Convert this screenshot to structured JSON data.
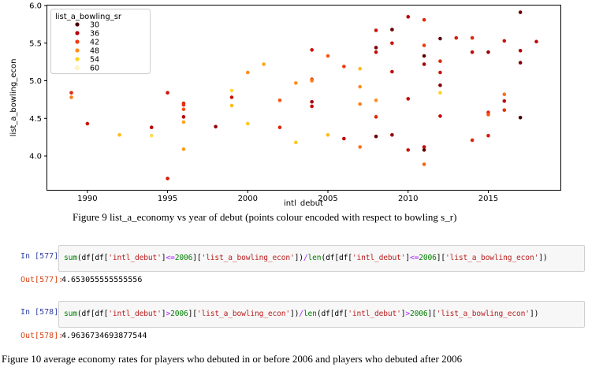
{
  "chart_data": {
    "type": "scatter",
    "xlabel": "intl_debut",
    "ylabel": "list_a_bowling_econ",
    "xlim": [
      1987.5,
      2019.5
    ],
    "ylim": [
      3.55,
      6.0
    ],
    "xticks": [
      "1990",
      "1995",
      "2000",
      "2005",
      "2010",
      "2015"
    ],
    "xtick_values": [
      1990,
      1995,
      2000,
      2005,
      2010,
      2015
    ],
    "yticks": [
      "4.0",
      "4.5",
      "5.0",
      "5.5",
      "6.0"
    ],
    "ytick_values": [
      4.0,
      4.5,
      5.0,
      5.5,
      6.0
    ],
    "grid": false,
    "legend": {
      "title": "list_a_bowling_sr",
      "placement": "top-left",
      "items": [
        {
          "label": "30",
          "color": "#4a0000"
        },
        {
          "label": "36",
          "color": "#b8000a"
        },
        {
          "label": "42",
          "color": "#ef3b0f"
        },
        {
          "label": "48",
          "color": "#fd8d1c"
        },
        {
          "label": "54",
          "color": "#ffd21e"
        },
        {
          "label": "60",
          "color": "#fff7c2"
        }
      ]
    },
    "colormap": [
      "#4a0000",
      "#b8000a",
      "#ef3b0f",
      "#fd8d1c",
      "#ffd21e",
      "#fff7c2"
    ],
    "color_value_range": [
      30,
      60
    ],
    "points": [
      {
        "x": 1989,
        "y": 4.84,
        "c": 40
      },
      {
        "x": 1989,
        "y": 4.78,
        "c": 47
      },
      {
        "x": 1990,
        "y": 4.43,
        "c": 38
      },
      {
        "x": 1992,
        "y": 4.28,
        "c": 52
      },
      {
        "x": 1994,
        "y": 4.38,
        "c": 36
      },
      {
        "x": 1994,
        "y": 4.27,
        "c": 56
      },
      {
        "x": 1995,
        "y": 4.84,
        "c": 38
      },
      {
        "x": 1995,
        "y": 3.7,
        "c": 39
      },
      {
        "x": 1996,
        "y": 4.7,
        "c": 40
      },
      {
        "x": 1996,
        "y": 4.68,
        "c": 41
      },
      {
        "x": 1996,
        "y": 4.62,
        "c": 44
      },
      {
        "x": 1996,
        "y": 4.52,
        "c": 36
      },
      {
        "x": 1996,
        "y": 4.45,
        "c": 50
      },
      {
        "x": 1996,
        "y": 4.09,
        "c": 49
      },
      {
        "x": 1998,
        "y": 4.39,
        "c": 34
      },
      {
        "x": 1999,
        "y": 4.87,
        "c": 55
      },
      {
        "x": 1999,
        "y": 4.78,
        "c": 38
      },
      {
        "x": 1999,
        "y": 4.67,
        "c": 52
      },
      {
        "x": 2000,
        "y": 5.11,
        "c": 48
      },
      {
        "x": 2000,
        "y": 4.43,
        "c": 53
      },
      {
        "x": 2001,
        "y": 5.22,
        "c": 50
      },
      {
        "x": 2002,
        "y": 4.74,
        "c": 44
      },
      {
        "x": 2002,
        "y": 4.38,
        "c": 40
      },
      {
        "x": 2003,
        "y": 4.97,
        "c": 48
      },
      {
        "x": 2003,
        "y": 4.18,
        "c": 53
      },
      {
        "x": 2004,
        "y": 5.41,
        "c": 38
      },
      {
        "x": 2004,
        "y": 5.02,
        "c": 43
      },
      {
        "x": 2004,
        "y": 5.0,
        "c": 47
      },
      {
        "x": 2004,
        "y": 4.72,
        "c": 35
      },
      {
        "x": 2004,
        "y": 4.66,
        "c": 37
      },
      {
        "x": 2005,
        "y": 5.33,
        "c": 44
      },
      {
        "x": 2005,
        "y": 4.28,
        "c": 52
      },
      {
        "x": 2006,
        "y": 5.19,
        "c": 42
      },
      {
        "x": 2006,
        "y": 4.23,
        "c": 36
      },
      {
        "x": 2007,
        "y": 5.16,
        "c": 52
      },
      {
        "x": 2007,
        "y": 4.92,
        "c": 48
      },
      {
        "x": 2007,
        "y": 4.69,
        "c": 47
      },
      {
        "x": 2007,
        "y": 4.12,
        "c": 46
      },
      {
        "x": 2008,
        "y": 5.67,
        "c": 38
      },
      {
        "x": 2008,
        "y": 5.44,
        "c": 33
      },
      {
        "x": 2008,
        "y": 5.38,
        "c": 37
      },
      {
        "x": 2008,
        "y": 4.74,
        "c": 48
      },
      {
        "x": 2008,
        "y": 4.52,
        "c": 40
      },
      {
        "x": 2008,
        "y": 4.26,
        "c": 32
      },
      {
        "x": 2009,
        "y": 5.68,
        "c": 32
      },
      {
        "x": 2009,
        "y": 5.5,
        "c": 38
      },
      {
        "x": 2009,
        "y": 5.12,
        "c": 37
      },
      {
        "x": 2009,
        "y": 4.28,
        "c": 34
      },
      {
        "x": 2010,
        "y": 5.85,
        "c": 36
      },
      {
        "x": 2010,
        "y": 4.76,
        "c": 37
      },
      {
        "x": 2010,
        "y": 4.08,
        "c": 38
      },
      {
        "x": 2011,
        "y": 5.81,
        "c": 40
      },
      {
        "x": 2011,
        "y": 5.47,
        "c": 42
      },
      {
        "x": 2011,
        "y": 5.33,
        "c": 31
      },
      {
        "x": 2011,
        "y": 5.22,
        "c": 35
      },
      {
        "x": 2011,
        "y": 4.12,
        "c": 37
      },
      {
        "x": 2011,
        "y": 4.08,
        "c": 31
      },
      {
        "x": 2011,
        "y": 3.89,
        "c": 45
      },
      {
        "x": 2012,
        "y": 5.56,
        "c": 31
      },
      {
        "x": 2012,
        "y": 5.26,
        "c": 40
      },
      {
        "x": 2012,
        "y": 5.11,
        "c": 38
      },
      {
        "x": 2012,
        "y": 4.94,
        "c": 33
      },
      {
        "x": 2012,
        "y": 4.84,
        "c": 54
      },
      {
        "x": 2012,
        "y": 4.53,
        "c": 37
      },
      {
        "x": 2013,
        "y": 5.57,
        "c": 39
      },
      {
        "x": 2014,
        "y": 5.57,
        "c": 40
      },
      {
        "x": 2014,
        "y": 5.38,
        "c": 37
      },
      {
        "x": 2014,
        "y": 4.21,
        "c": 40
      },
      {
        "x": 2015,
        "y": 5.38,
        "c": 34
      },
      {
        "x": 2015,
        "y": 4.58,
        "c": 40
      },
      {
        "x": 2015,
        "y": 4.55,
        "c": 44
      },
      {
        "x": 2015,
        "y": 4.27,
        "c": 39
      },
      {
        "x": 2016,
        "y": 5.53,
        "c": 38
      },
      {
        "x": 2016,
        "y": 4.82,
        "c": 46
      },
      {
        "x": 2016,
        "y": 4.73,
        "c": 37
      },
      {
        "x": 2016,
        "y": 4.61,
        "c": 41
      },
      {
        "x": 2017,
        "y": 5.91,
        "c": 32
      },
      {
        "x": 2017,
        "y": 5.4,
        "c": 36
      },
      {
        "x": 2017,
        "y": 5.24,
        "c": 33
      },
      {
        "x": 2017,
        "y": 4.51,
        "c": 30
      },
      {
        "x": 2018,
        "y": 5.52,
        "c": 37
      }
    ]
  },
  "captions": {
    "figure9": "Figure 9 list_a_economy vs year of debut (points colour encoded with respect to bowling s_r)",
    "figure10": "Figure 10 average economy rates for players who debuted in or before 2006 and players who debuted after 2006"
  },
  "notebook": {
    "cells": [
      {
        "in_prompt": "In [577]:",
        "code_tokens": [
          {
            "t": "sum",
            "k": "kw"
          },
          {
            "t": "(df[df[",
            "k": ""
          },
          {
            "t": "'intl_debut'",
            "k": "str"
          },
          {
            "t": "]",
            "k": ""
          },
          {
            "t": "<=",
            "k": "op"
          },
          {
            "t": "2006",
            "k": "num"
          },
          {
            "t": "][",
            "k": ""
          },
          {
            "t": "'list_a_bowling_econ'",
            "k": "str"
          },
          {
            "t": "])",
            "k": ""
          },
          {
            "t": "/",
            "k": "op"
          },
          {
            "t": "len",
            "k": "kw"
          },
          {
            "t": "(df[df[",
            "k": ""
          },
          {
            "t": "'intl_debut'",
            "k": "str"
          },
          {
            "t": "]",
            "k": ""
          },
          {
            "t": "<=",
            "k": "op"
          },
          {
            "t": "2006",
            "k": "num"
          },
          {
            "t": "][",
            "k": ""
          },
          {
            "t": "'list_a_bowling_econ'",
            "k": "str"
          },
          {
            "t": "])",
            "k": ""
          }
        ],
        "out_prompt": "Out[577]:",
        "output": "4.653055555555556"
      },
      {
        "in_prompt": "In [578]:",
        "code_tokens": [
          {
            "t": "sum",
            "k": "kw"
          },
          {
            "t": "(df[df[",
            "k": ""
          },
          {
            "t": "'intl_debut'",
            "k": "str"
          },
          {
            "t": "]",
            "k": ""
          },
          {
            "t": ">",
            "k": "op"
          },
          {
            "t": "2006",
            "k": "num"
          },
          {
            "t": "][",
            "k": ""
          },
          {
            "t": "'list_a_bowling_econ'",
            "k": "str"
          },
          {
            "t": "])",
            "k": ""
          },
          {
            "t": "/",
            "k": "op"
          },
          {
            "t": "len",
            "k": "kw"
          },
          {
            "t": "(df[df[",
            "k": ""
          },
          {
            "t": "'intl_debut'",
            "k": "str"
          },
          {
            "t": "]",
            "k": ""
          },
          {
            "t": ">",
            "k": "op"
          },
          {
            "t": "2006",
            "k": "num"
          },
          {
            "t": "][",
            "k": ""
          },
          {
            "t": "'list_a_bowling_econ'",
            "k": "str"
          },
          {
            "t": "])",
            "k": ""
          }
        ],
        "out_prompt": "Out[578]:",
        "output": "4.9636734693877544"
      }
    ]
  }
}
